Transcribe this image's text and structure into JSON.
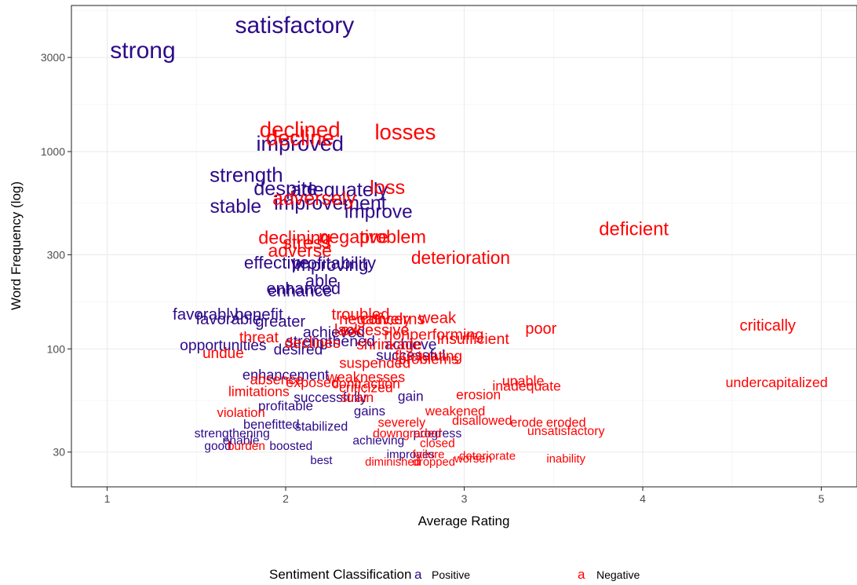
{
  "chart_data": {
    "type": "scatter",
    "xlabel": "Average Rating",
    "ylabel": "Word Frequency (log)",
    "xlim": [
      0.8,
      5.2
    ],
    "ylim": [
      20,
      5500
    ],
    "y_scale": "log",
    "x_ticks": [
      1,
      2,
      3,
      4,
      5
    ],
    "x_tick_labels": [
      "1",
      "2",
      "3",
      "4",
      "5"
    ],
    "y_ticks": [
      30,
      100,
      300,
      1000,
      3000
    ],
    "y_tick_labels": [
      "30",
      "100",
      "300",
      "1000",
      "3000"
    ],
    "grid": true,
    "legend": {
      "title": "Sentiment Classification",
      "placement": "bottom",
      "key_glyph": "a",
      "entries": [
        {
          "label": "Positive",
          "color": "#2e0a8a"
        },
        {
          "label": "Negative",
          "color": "#ff0000"
        }
      ]
    },
    "series": [
      {
        "name": "Positive",
        "color": "#2e0a8a",
        "points": [
          {
            "label": "strong",
            "x": 1.2,
            "y": 3200
          },
          {
            "label": "satisfactory",
            "x": 2.05,
            "y": 4300
          },
          {
            "label": "improved",
            "x": 2.08,
            "y": 1080
          },
          {
            "label": "strength",
            "x": 1.78,
            "y": 750
          },
          {
            "label": "despite",
            "x": 2.0,
            "y": 640
          },
          {
            "label": "adequately",
            "x": 2.3,
            "y": 630
          },
          {
            "label": "improvement",
            "x": 2.25,
            "y": 540
          },
          {
            "label": "stable",
            "x": 1.72,
            "y": 520
          },
          {
            "label": "improve",
            "x": 2.52,
            "y": 490
          },
          {
            "label": "effective",
            "x": 1.95,
            "y": 270
          },
          {
            "label": "profitability",
            "x": 2.27,
            "y": 268
          },
          {
            "label": "improving",
            "x": 2.25,
            "y": 262
          },
          {
            "label": "able",
            "x": 2.2,
            "y": 218
          },
          {
            "label": "enhanced",
            "x": 2.1,
            "y": 200
          },
          {
            "label": "enhance",
            "x": 2.08,
            "y": 194
          },
          {
            "label": "favorably",
            "x": 1.55,
            "y": 148
          },
          {
            "label": "benefit",
            "x": 1.85,
            "y": 148
          },
          {
            "label": "favorable",
            "x": 1.68,
            "y": 140
          },
          {
            "label": "greater",
            "x": 1.97,
            "y": 136
          },
          {
            "label": "achieved",
            "x": 2.27,
            "y": 120
          },
          {
            "label": "opportunities",
            "x": 1.65,
            "y": 103
          },
          {
            "label": "strengthened",
            "x": 2.25,
            "y": 108
          },
          {
            "label": "desired",
            "x": 2.07,
            "y": 98
          },
          {
            "label": "achieve",
            "x": 2.7,
            "y": 104
          },
          {
            "label": "successful",
            "x": 2.7,
            "y": 92
          },
          {
            "label": "enhancement",
            "x": 2.0,
            "y": 73
          },
          {
            "label": "successfully",
            "x": 2.25,
            "y": 56
          },
          {
            "label": "gain",
            "x": 2.7,
            "y": 57
          },
          {
            "label": "profitable",
            "x": 2.0,
            "y": 51
          },
          {
            "label": "gains",
            "x": 2.47,
            "y": 48
          },
          {
            "label": "benefitted",
            "x": 1.92,
            "y": 41
          },
          {
            "label": "stabilized",
            "x": 2.2,
            "y": 40
          },
          {
            "label": "strengthening",
            "x": 1.7,
            "y": 37
          },
          {
            "label": "progress",
            "x": 2.85,
            "y": 37
          },
          {
            "label": "achieving",
            "x": 2.52,
            "y": 34
          },
          {
            "label": "enable",
            "x": 1.75,
            "y": 34
          },
          {
            "label": "good",
            "x": 1.62,
            "y": 32
          },
          {
            "label": "boosted",
            "x": 2.03,
            "y": 32
          },
          {
            "label": "improves",
            "x": 2.7,
            "y": 29
          },
          {
            "label": "best",
            "x": 2.2,
            "y": 27
          }
        ]
      },
      {
        "name": "Negative",
        "color": "#ff0000",
        "points": [
          {
            "label": "declined",
            "x": 2.08,
            "y": 1270
          },
          {
            "label": "decline",
            "x": 2.08,
            "y": 1150
          },
          {
            "label": "losses",
            "x": 2.67,
            "y": 1230
          },
          {
            "label": "loss",
            "x": 2.57,
            "y": 650
          },
          {
            "label": "adversely",
            "x": 2.16,
            "y": 570
          },
          {
            "label": "deficient",
            "x": 3.95,
            "y": 400
          },
          {
            "label": "declining",
            "x": 2.05,
            "y": 360
          },
          {
            "label": "negative",
            "x": 2.38,
            "y": 365
          },
          {
            "label": "problem",
            "x": 2.6,
            "y": 365
          },
          {
            "label": "stress",
            "x": 2.12,
            "y": 340
          },
          {
            "label": "adverse",
            "x": 2.08,
            "y": 310
          },
          {
            "label": "deterioration",
            "x": 2.98,
            "y": 285
          },
          {
            "label": "troubled",
            "x": 2.42,
            "y": 148
          },
          {
            "label": "negatively",
            "x": 2.5,
            "y": 140
          },
          {
            "label": "concerns",
            "x": 2.6,
            "y": 140
          },
          {
            "label": "weak",
            "x": 2.85,
            "y": 142
          },
          {
            "label": "poor",
            "x": 3.43,
            "y": 125
          },
          {
            "label": "critically",
            "x": 4.7,
            "y": 130
          },
          {
            "label": "excessive",
            "x": 2.5,
            "y": 123
          },
          {
            "label": "lack",
            "x": 2.35,
            "y": 123
          },
          {
            "label": "nonperforming",
            "x": 2.83,
            "y": 117
          },
          {
            "label": "insufficient",
            "x": 3.05,
            "y": 111
          },
          {
            "label": "threat",
            "x": 1.85,
            "y": 113
          },
          {
            "label": "declines",
            "x": 2.15,
            "y": 106
          },
          {
            "label": "shrinkage",
            "x": 2.58,
            "y": 104
          },
          {
            "label": "undue",
            "x": 1.65,
            "y": 94
          },
          {
            "label": "suspended",
            "x": 2.5,
            "y": 84
          },
          {
            "label": "fluctuating",
            "x": 2.8,
            "y": 91
          },
          {
            "label": "problems",
            "x": 2.8,
            "y": 88
          },
          {
            "label": "absence",
            "x": 1.95,
            "y": 69
          },
          {
            "label": "weaknesses",
            "x": 2.45,
            "y": 71
          },
          {
            "label": "exposed",
            "x": 2.15,
            "y": 67
          },
          {
            "label": "contraction",
            "x": 2.45,
            "y": 66
          },
          {
            "label": "unable",
            "x": 3.33,
            "y": 68
          },
          {
            "label": "inadequate",
            "x": 3.35,
            "y": 64
          },
          {
            "label": "undercapitalized",
            "x": 4.75,
            "y": 67
          },
          {
            "label": "limitations",
            "x": 1.85,
            "y": 60
          },
          {
            "label": "criticized",
            "x": 2.45,
            "y": 63
          },
          {
            "label": "erosion",
            "x": 3.08,
            "y": 58
          },
          {
            "label": "strain",
            "x": 2.4,
            "y": 56
          },
          {
            "label": "weakened",
            "x": 2.95,
            "y": 48
          },
          {
            "label": "violation",
            "x": 1.75,
            "y": 47
          },
          {
            "label": "severely",
            "x": 2.65,
            "y": 42
          },
          {
            "label": "disallowed",
            "x": 3.1,
            "y": 43
          },
          {
            "label": "erode",
            "x": 3.35,
            "y": 42
          },
          {
            "label": "eroded",
            "x": 3.57,
            "y": 42
          },
          {
            "label": "unsatisfactory",
            "x": 3.57,
            "y": 38
          },
          {
            "label": "downgraded",
            "x": 2.68,
            "y": 37
          },
          {
            "label": "closed",
            "x": 2.85,
            "y": 33
          },
          {
            "label": "burden",
            "x": 1.78,
            "y": 32
          },
          {
            "label": "failure",
            "x": 2.8,
            "y": 29
          },
          {
            "label": "deteriorate",
            "x": 3.13,
            "y": 28.5
          },
          {
            "label": "inability",
            "x": 3.57,
            "y": 27.5
          },
          {
            "label": "diminished",
            "x": 2.6,
            "y": 26.5
          },
          {
            "label": "dropped",
            "x": 2.83,
            "y": 26.5
          },
          {
            "label": "worsen",
            "x": 3.05,
            "y": 27.5
          }
        ]
      }
    ]
  }
}
